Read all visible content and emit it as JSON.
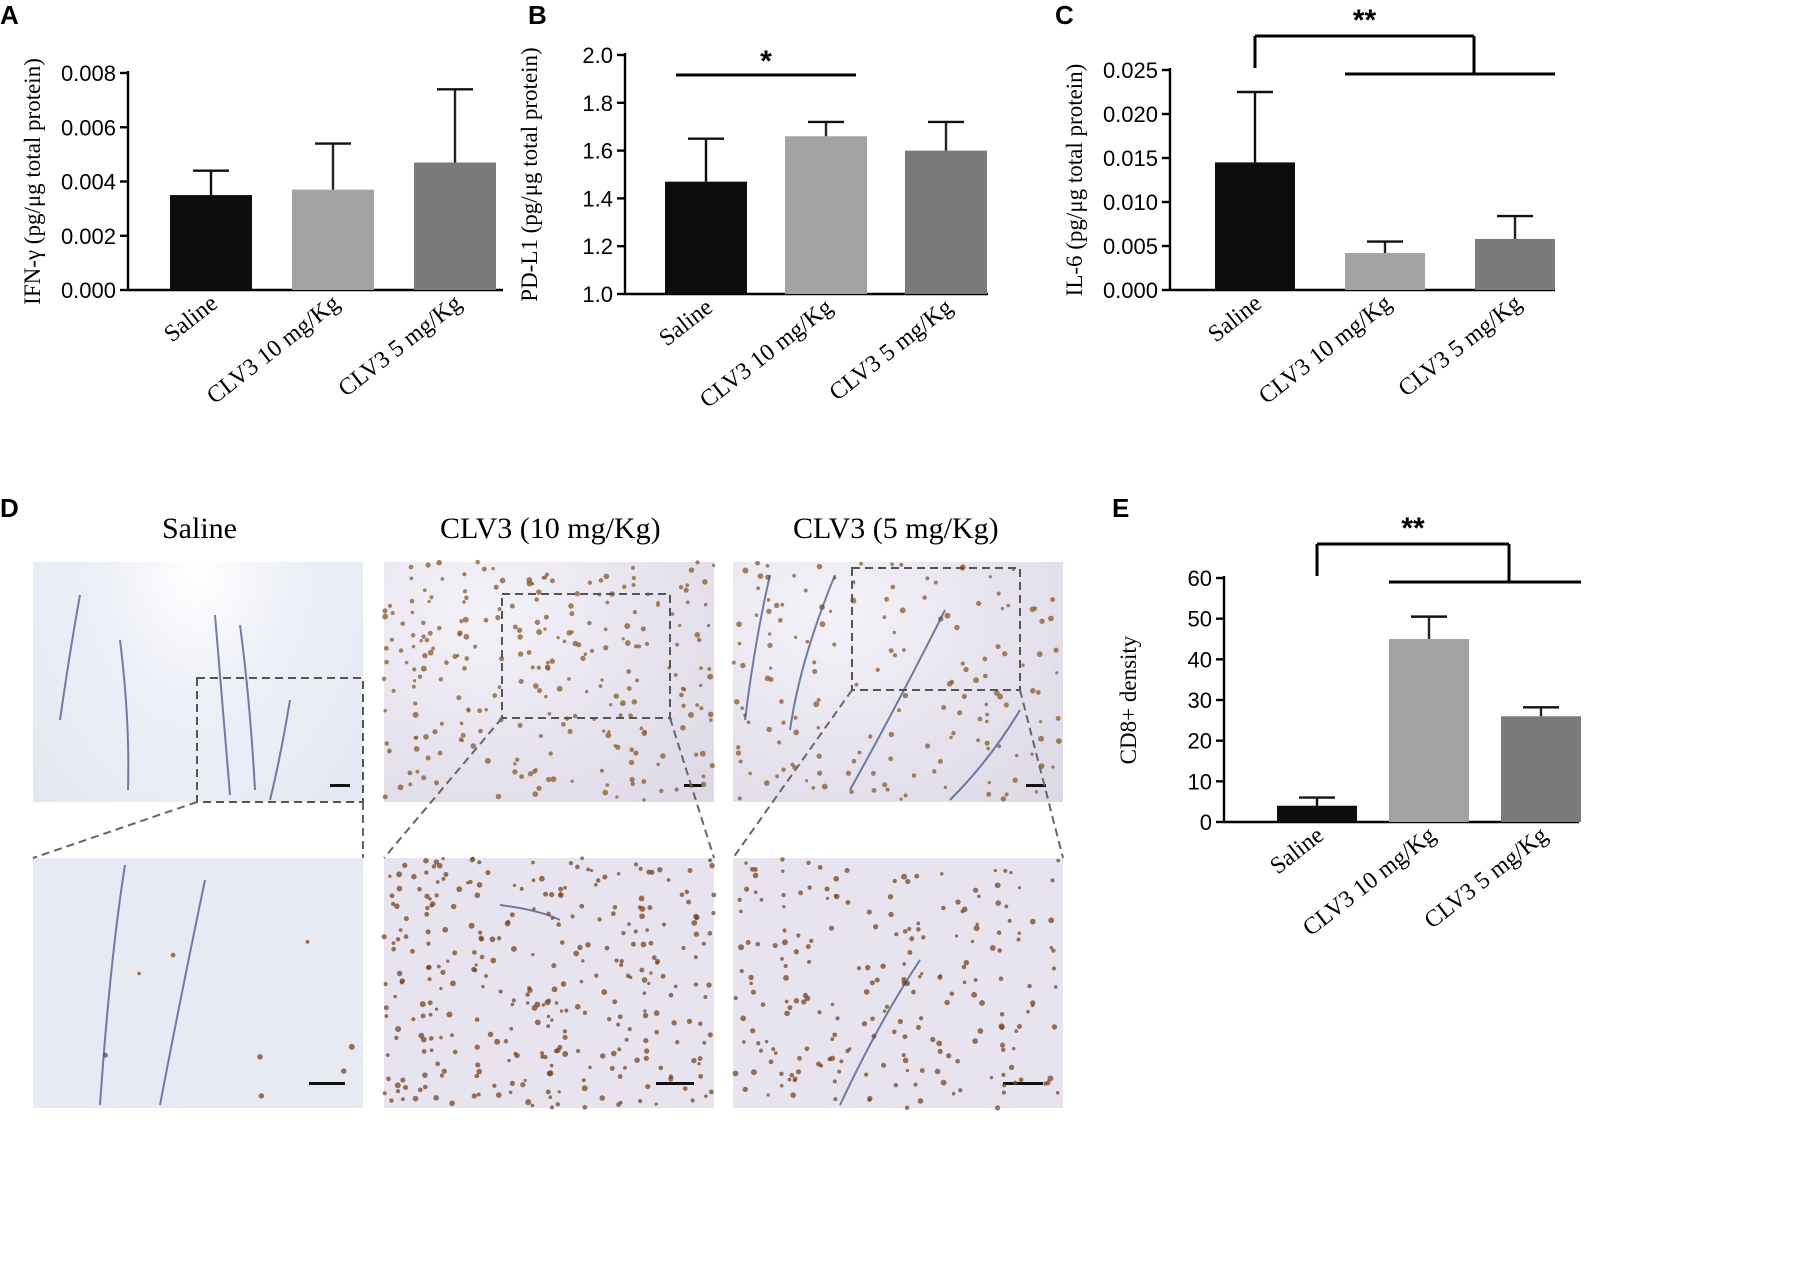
{
  "panels": {
    "a": "A",
    "b": "B",
    "c": "C",
    "d": "D",
    "e": "E"
  },
  "group_labels": [
    "Saline",
    "CLV3 10 mg/Kg",
    "CLV3 5 mg/Kg"
  ],
  "bar_colors": [
    "#0d0d0d",
    "#a3a3a3",
    "#7a7a7a"
  ],
  "chart_data": [
    {
      "panel": "A",
      "type": "bar",
      "categories": [
        "Saline",
        "CLV3 10 mg/Kg",
        "CLV3 5 mg/Kg"
      ],
      "values": [
        0.0035,
        0.0037,
        0.0047
      ],
      "errors": [
        0.0009,
        0.0017,
        0.0027
      ],
      "ylabel": "IFN-γ (pg/μg total protein)",
      "ylim": [
        0,
        0.008
      ],
      "ticks": [
        "0.000",
        "0.002",
        "0.004",
        "0.006",
        "0.008"
      ],
      "significance": []
    },
    {
      "panel": "B",
      "type": "bar",
      "categories": [
        "Saline",
        "CLV3 10 mg/Kg",
        "CLV3 5 mg/Kg"
      ],
      "values": [
        1.47,
        1.66,
        1.6
      ],
      "errors": [
        0.18,
        0.06,
        0.12
      ],
      "ylabel": "PD-L1 (pg/μg total protein)",
      "ylim": [
        1.0,
        2.0
      ],
      "ticks": [
        "1.0",
        "1.2",
        "1.4",
        "1.6",
        "1.8",
        "2.0"
      ],
      "significance": [
        {
          "label": "*",
          "from": 0,
          "to": 1
        }
      ]
    },
    {
      "panel": "C",
      "type": "bar",
      "categories": [
        "Saline",
        "CLV3 10 mg/Kg",
        "CLV3 5 mg/Kg"
      ],
      "values": [
        0.0145,
        0.0042,
        0.0058
      ],
      "errors": [
        0.008,
        0.0013,
        0.0026
      ],
      "ylabel": "IL-6 (pg/μg total protein)",
      "ylim": [
        0,
        0.025
      ],
      "ticks": [
        "0.000",
        "0.005",
        "0.010",
        "0.015",
        "0.020",
        "0.025"
      ],
      "significance": [
        {
          "label": "**",
          "from": 0,
          "to_group": [
            1,
            2
          ]
        }
      ]
    },
    {
      "panel": "E",
      "type": "bar",
      "categories": [
        "Saline",
        "CLV3 10 mg/Kg",
        "CLV3 5 mg/Kg"
      ],
      "values": [
        4,
        45,
        26
      ],
      "errors": [
        2,
        5.5,
        2.2
      ],
      "ylabel": "CD8+ density",
      "ylim": [
        0,
        60
      ],
      "ticks": [
        "0",
        "10",
        "20",
        "30",
        "40",
        "50",
        "60"
      ],
      "significance": [
        {
          "label": "**",
          "from": 0,
          "to_group": [
            1,
            2
          ]
        }
      ]
    }
  ],
  "micrographs": {
    "titles": [
      "Saline",
      "CLV3 (10 mg/Kg)",
      "CLV3 (5 mg/Kg)"
    ]
  }
}
